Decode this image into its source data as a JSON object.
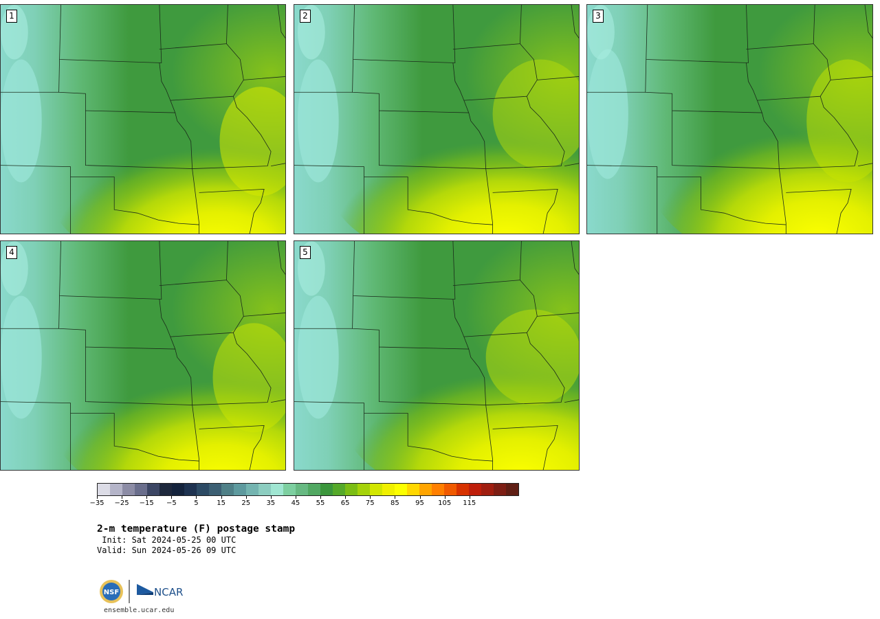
{
  "panels": [
    {
      "label": "1"
    },
    {
      "label": "2"
    },
    {
      "label": "3"
    },
    {
      "label": "4"
    },
    {
      "label": "5"
    }
  ],
  "colorbar": {
    "colors": [
      "#dcdce6",
      "#b4b4c8",
      "#8c8ca5",
      "#6a6e8c",
      "#3c4664",
      "#1e283c",
      "#14233c",
      "#1e3250",
      "#2c4a64",
      "#3c5f73",
      "#4f8087",
      "#5e9a9e",
      "#74b4b0",
      "#8ccdc0",
      "#a0e6d2",
      "#7dcfa0",
      "#67b982",
      "#51a862",
      "#3b963c",
      "#55a92a",
      "#7bbd14",
      "#a5d20a",
      "#d2e600",
      "#f0f000",
      "#fcff00",
      "#ffd700",
      "#ffa500",
      "#ff7f00",
      "#f05a00",
      "#d73200",
      "#be1e0a",
      "#a01e10",
      "#7d1e14",
      "#5f1e14"
    ],
    "tick_labels": [
      "−35",
      "−25",
      "−15",
      "−5",
      "5",
      "15",
      "25",
      "35",
      "45",
      "55",
      "65",
      "75",
      "85",
      "95",
      "105",
      "115"
    ]
  },
  "title": {
    "main": "2-m temperature (F) postage stamp",
    "init": " Init: Sat 2024-05-25 00 UTC",
    "valid": "Valid: Sun 2024-05-26 09 UTC"
  },
  "logos": {
    "nsf": "NSF",
    "ncar": "NCAR"
  },
  "footer": {
    "url": "ensemble.ucar.edu"
  }
}
